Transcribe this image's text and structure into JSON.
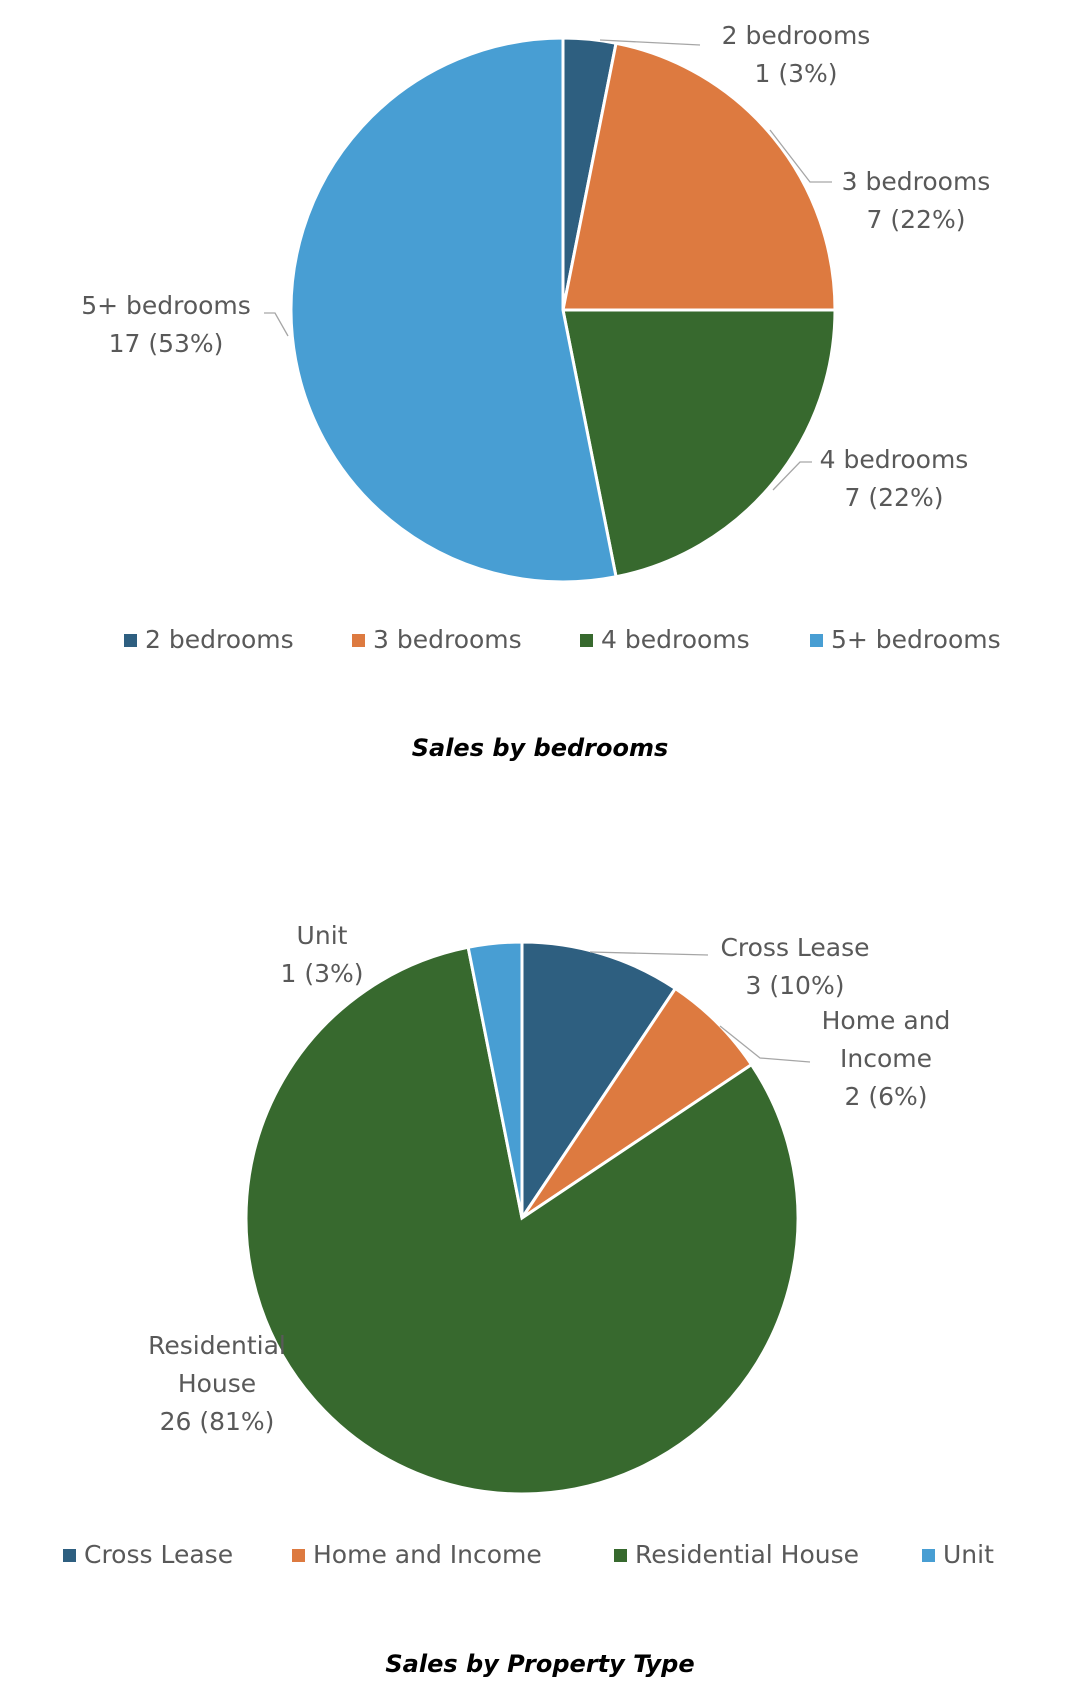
{
  "chart_data": [
    {
      "type": "pie",
      "title": "",
      "caption": "Sales by bedrooms",
      "legend_position": "bottom",
      "slices": [
        {
          "name": "2 bedrooms",
          "value": 1,
          "percent_label": "1 (3%)",
          "color": "#2e5f80"
        },
        {
          "name": "3 bedrooms",
          "value": 7,
          "percent_label": "7 (22%)",
          "color": "#dd7a40"
        },
        {
          "name": "4 bedrooms",
          "value": 7,
          "percent_label": "7 (22%)",
          "color": "#37692e"
        },
        {
          "name": "5+ bedrooms",
          "value": 17,
          "percent_label": "17 (53%)",
          "color": "#489ed3"
        }
      ]
    },
    {
      "type": "pie",
      "title": "",
      "caption": "Sales by Property Type",
      "legend_position": "bottom",
      "slices": [
        {
          "name": "Cross Lease",
          "value": 3,
          "percent_label": "3 (10%)",
          "color": "#2e5f80"
        },
        {
          "name": "Home and Income",
          "value": 2,
          "percent_label": "2 (6%)",
          "color": "#dd7a40"
        },
        {
          "name": "Residential House",
          "value": 26,
          "percent_label": "26 (81%)",
          "color": "#37692e"
        },
        {
          "name": "Unit",
          "value": 1,
          "percent_label": "1 (3%)",
          "color": "#489ed3"
        }
      ]
    }
  ]
}
